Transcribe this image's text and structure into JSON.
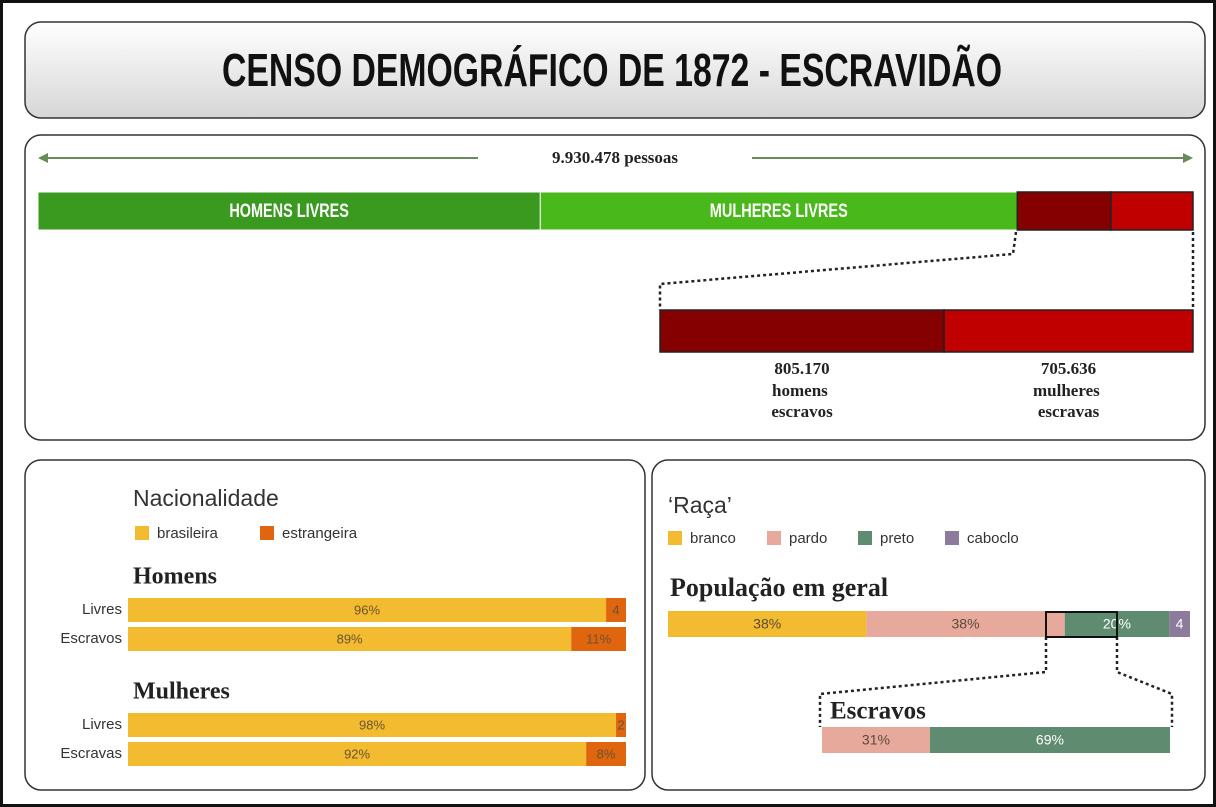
{
  "chart_data": [
    {
      "type": "bar",
      "title": "CENSO DEMOGRÁFICO DE 1872 - ESCRAVIDÃO",
      "total": 9930478,
      "total_label": "9.930.478 pessoas",
      "series": [
        {
          "name": "HOMENS LIVRES",
          "color": "#3a9a1f",
          "values": [
            4318699
          ]
        },
        {
          "name": "MULHERES LIVRES",
          "color": "#49b81a",
          "values": [
            4100973
          ]
        },
        {
          "name": "homens escravos",
          "color": "#850000",
          "values": [
            805170
          ],
          "value_labels": [
            "805.170"
          ]
        },
        {
          "name": "mulheres escravas",
          "color": "#c00000",
          "values": [
            705636
          ],
          "value_labels": [
            "705.636"
          ]
        }
      ]
    },
    {
      "type": "bar",
      "title": "Nacionalidade",
      "group_labels": [
        "Homens",
        "Mulheres"
      ],
      "categories": [
        [
          "Livres",
          "Escravos"
        ],
        [
          "Livres",
          "Escravas"
        ]
      ],
      "series": [
        {
          "name": "brasileira",
          "color": "#f2bb30",
          "values": [
            [
              96,
              89
            ],
            [
              98,
              92
            ]
          ],
          "value_labels": [
            [
              "96%",
              "89%"
            ],
            [
              "98%",
              "92%"
            ]
          ]
        },
        {
          "name": "estrangeira",
          "color": "#e0650f",
          "values": [
            [
              4,
              11
            ],
            [
              2,
              8
            ]
          ],
          "value_labels": [
            [
              "4",
              "11%"
            ],
            [
              "2",
              "8%"
            ]
          ]
        }
      ]
    },
    {
      "type": "bar",
      "title": "‘Raça’",
      "categories": [
        "População em geral",
        "Escravos"
      ],
      "series": [
        {
          "name": "branco",
          "color": "#f2bb30",
          "values": [
            38,
            null
          ],
          "value_labels": [
            "38%",
            null
          ]
        },
        {
          "name": "pardo",
          "color": "#e8a99d",
          "values": [
            38,
            31
          ],
          "value_labels": [
            "38%",
            "31%"
          ]
        },
        {
          "name": "preto",
          "color": "#5f8b70",
          "values": [
            20,
            69
          ],
          "value_labels": [
            "20%",
            "69%"
          ]
        },
        {
          "name": "caboclo",
          "color": "#8c7b9b",
          "values": [
            4,
            null
          ],
          "value_labels": [
            "4",
            null
          ]
        }
      ]
    }
  ]
}
